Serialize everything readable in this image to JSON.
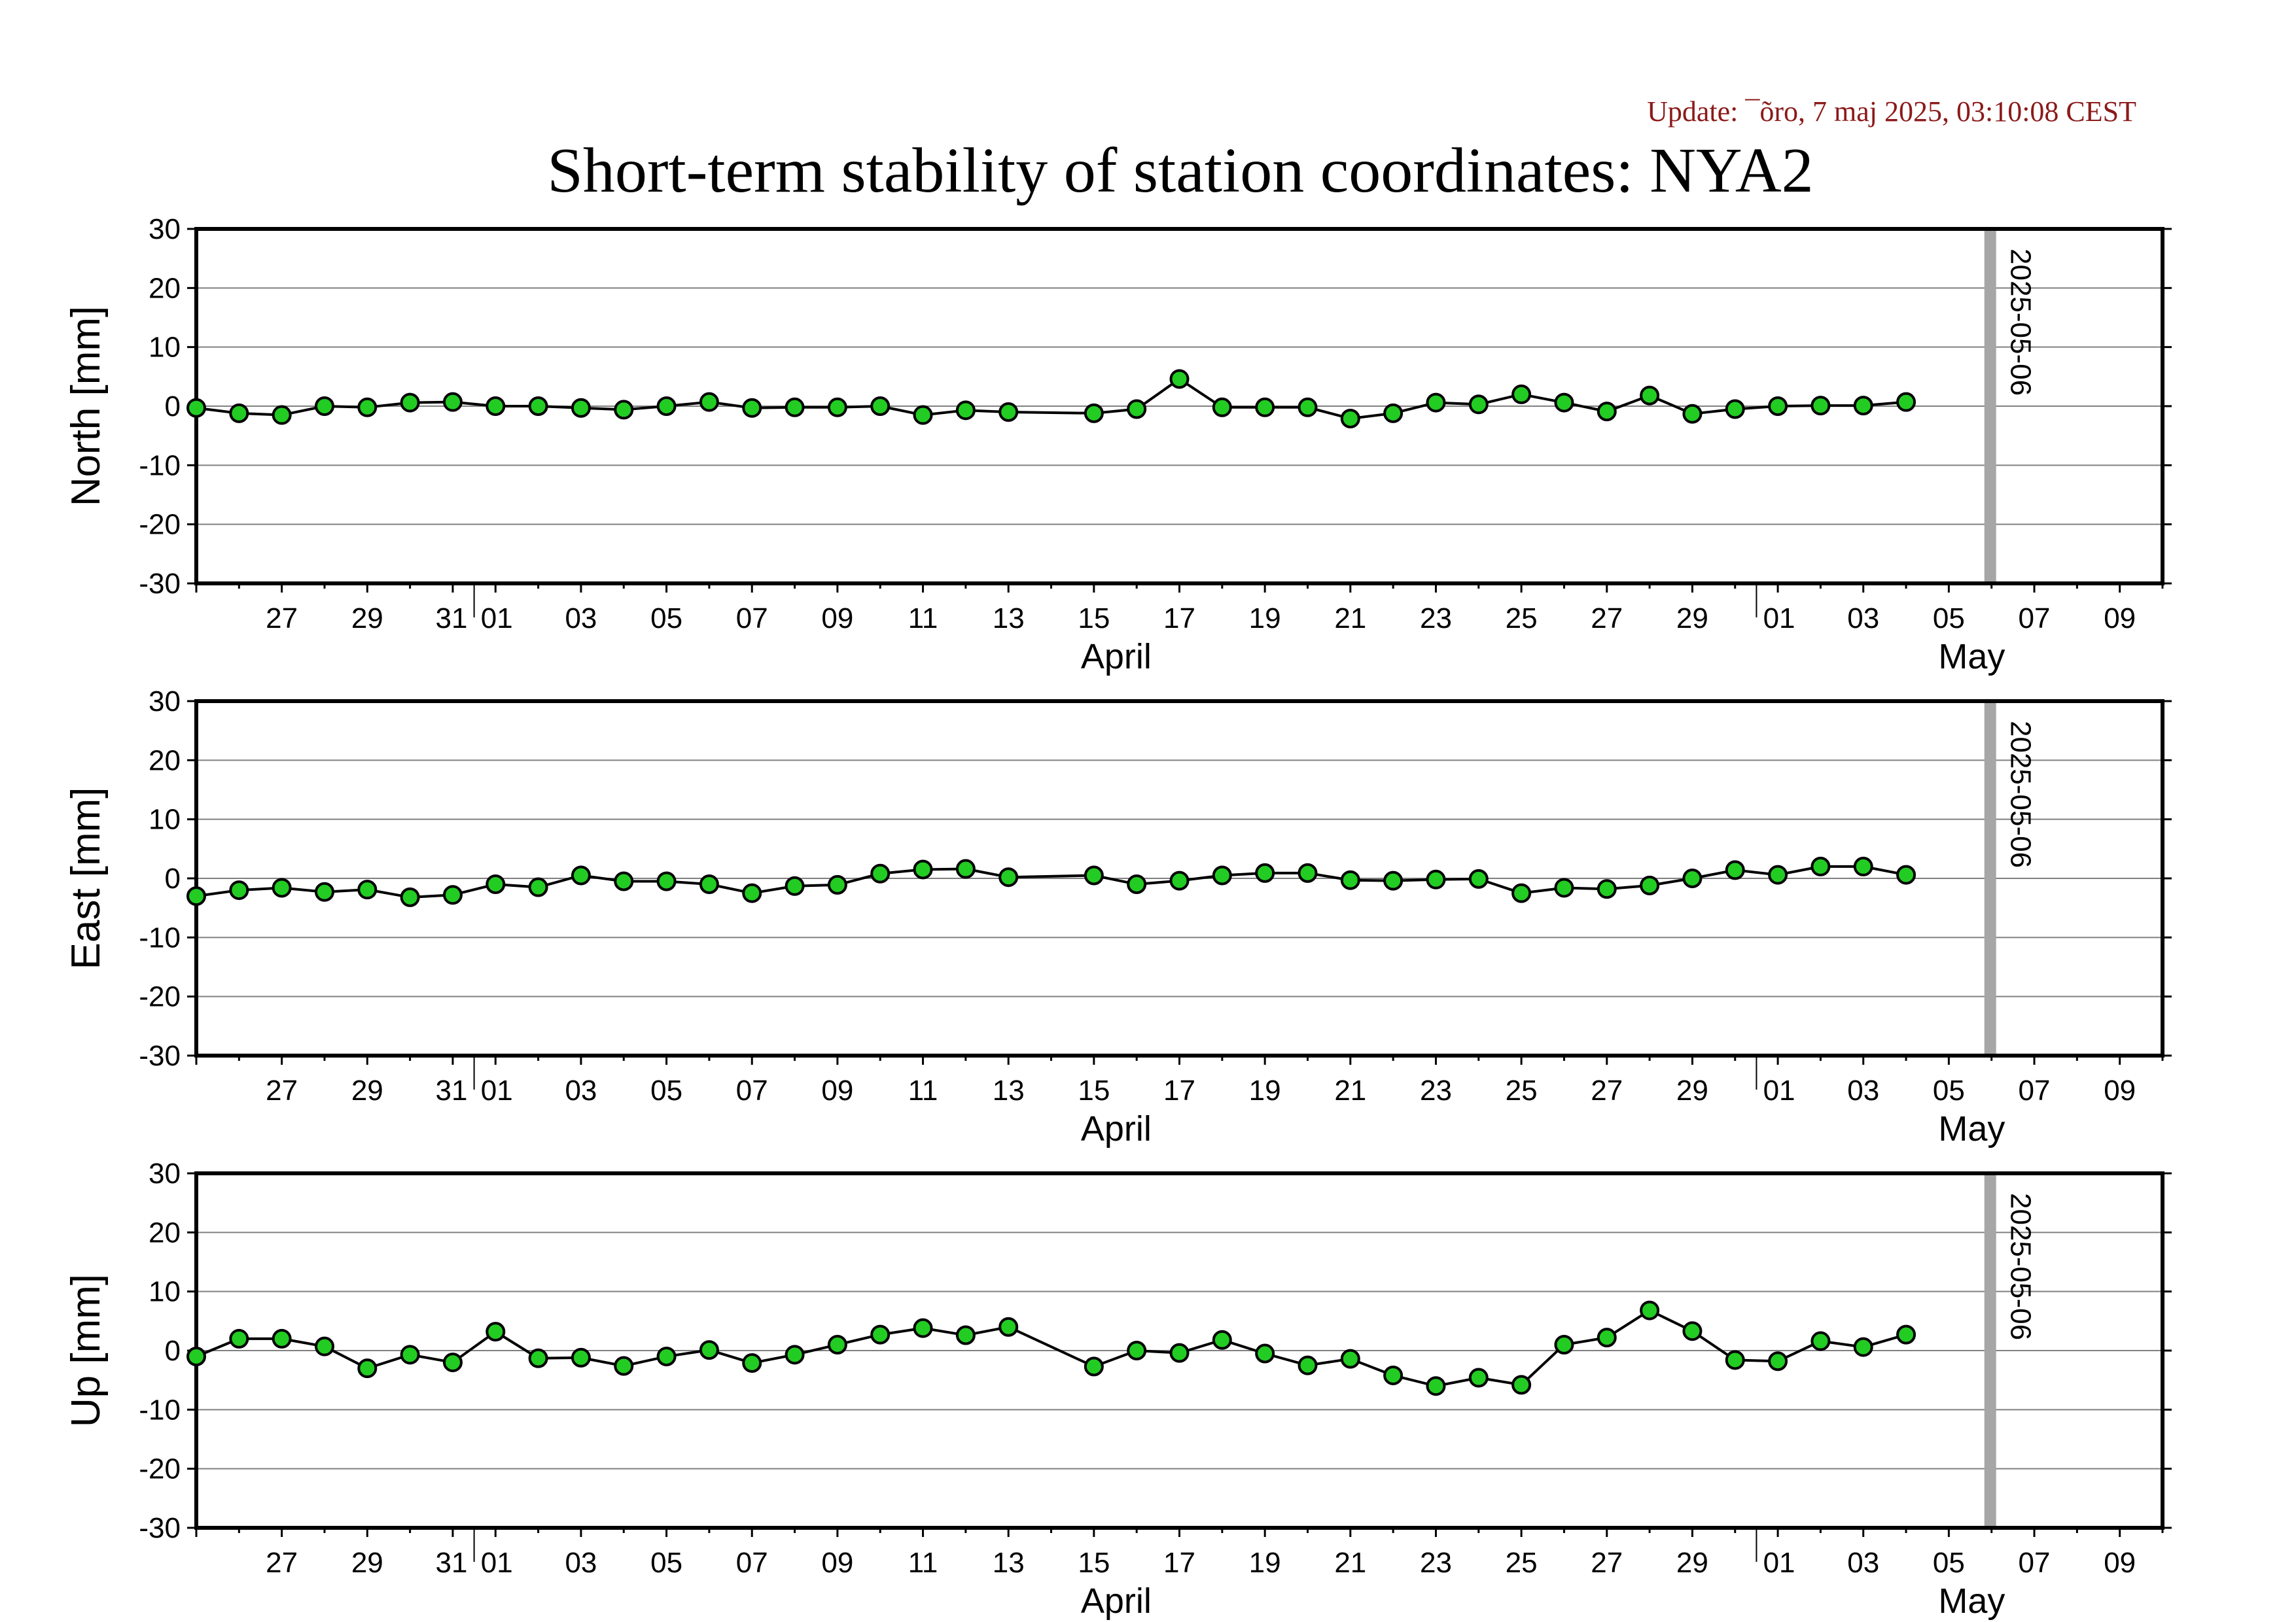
{
  "header": {
    "update": "Update: ¯õro, 7 maj 2025, 03:10:08 CEST",
    "title": "Short-term stability of station coordinates: NYA2"
  },
  "styles": {
    "point_fill": "#22cc22",
    "point_stroke": "#000000",
    "line_color": "#000000",
    "grid_color": "#808080",
    "marker_line_color": "#a6a6a6",
    "update_color": "#8b1a1a"
  },
  "chart_data": [
    {
      "type": "line",
      "ylabel": "North [mm]",
      "ylim": [
        -30,
        30
      ],
      "yticks": [
        30,
        20,
        10,
        0,
        -10,
        -20,
        -30
      ],
      "xlim": [
        "2025-03-25",
        "2025-05-10"
      ],
      "grid": true,
      "marker_line": {
        "date": "2025-05-06",
        "label": "2025-05-06"
      },
      "x_tick_labels": [
        "27",
        "29",
        "31",
        "01",
        "03",
        "05",
        "07",
        "09",
        "11",
        "13",
        "15",
        "17",
        "19",
        "21",
        "23",
        "25",
        "27",
        "29",
        "01",
        "03",
        "05",
        "07",
        "09"
      ],
      "month_labels": [
        "April",
        "May"
      ],
      "series": [
        {
          "x": [
            "2025-03-25",
            "2025-03-26",
            "2025-03-27",
            "2025-03-28",
            "2025-03-29",
            "2025-03-30",
            "2025-03-31",
            "2025-04-01",
            "2025-04-02",
            "2025-04-03",
            "2025-04-04",
            "2025-04-05",
            "2025-04-06",
            "2025-04-07",
            "2025-04-08",
            "2025-04-09",
            "2025-04-10",
            "2025-04-11",
            "2025-04-12",
            "2025-04-13",
            "2025-04-15",
            "2025-04-16",
            "2025-04-17",
            "2025-04-18",
            "2025-04-19",
            "2025-04-20",
            "2025-04-21",
            "2025-04-22",
            "2025-04-23",
            "2025-04-24",
            "2025-04-25",
            "2025-04-26",
            "2025-04-27",
            "2025-04-28",
            "2025-04-29",
            "2025-04-30",
            "2025-05-01",
            "2025-05-02",
            "2025-05-03",
            "2025-05-04"
          ],
          "values": [
            -0.3,
            -1.2,
            -1.5,
            0.0,
            -0.2,
            0.6,
            0.7,
            0.0,
            0.0,
            -0.3,
            -0.6,
            0.0,
            0.7,
            -0.3,
            -0.2,
            -0.2,
            0.0,
            -1.5,
            -0.7,
            -1.0,
            -1.2,
            -0.5,
            4.6,
            -0.2,
            -0.2,
            -0.2,
            -2.1,
            -1.2,
            0.6,
            0.3,
            2.0,
            0.6,
            -0.9,
            1.8,
            -1.3,
            -0.5,
            0.0,
            0.1,
            0.1,
            0.7
          ]
        }
      ]
    },
    {
      "type": "line",
      "ylabel": "East [mm]",
      "ylim": [
        -30,
        30
      ],
      "yticks": [
        30,
        20,
        10,
        0,
        -10,
        -20,
        -30
      ],
      "xlim": [
        "2025-03-25",
        "2025-05-10"
      ],
      "grid": true,
      "marker_line": {
        "date": "2025-05-06",
        "label": "2025-05-06"
      },
      "x_tick_labels": [
        "27",
        "29",
        "31",
        "01",
        "03",
        "05",
        "07",
        "09",
        "11",
        "13",
        "15",
        "17",
        "19",
        "21",
        "23",
        "25",
        "27",
        "29",
        "01",
        "03",
        "05",
        "07",
        "09"
      ],
      "month_labels": [
        "April",
        "May"
      ],
      "series": [
        {
          "x": [
            "2025-03-25",
            "2025-03-26",
            "2025-03-27",
            "2025-03-28",
            "2025-03-29",
            "2025-03-30",
            "2025-03-31",
            "2025-04-01",
            "2025-04-02",
            "2025-04-03",
            "2025-04-04",
            "2025-04-05",
            "2025-04-06",
            "2025-04-07",
            "2025-04-08",
            "2025-04-09",
            "2025-04-10",
            "2025-04-11",
            "2025-04-12",
            "2025-04-13",
            "2025-04-15",
            "2025-04-16",
            "2025-04-17",
            "2025-04-18",
            "2025-04-19",
            "2025-04-20",
            "2025-04-21",
            "2025-04-22",
            "2025-04-23",
            "2025-04-24",
            "2025-04-25",
            "2025-04-26",
            "2025-04-27",
            "2025-04-28",
            "2025-04-29",
            "2025-04-30",
            "2025-05-01",
            "2025-05-02",
            "2025-05-03",
            "2025-05-04"
          ],
          "values": [
            -3.0,
            -2.0,
            -1.6,
            -2.3,
            -1.9,
            -3.2,
            -2.8,
            -1.0,
            -1.5,
            0.5,
            -0.5,
            -0.5,
            -1.0,
            -2.5,
            -1.3,
            -1.1,
            0.8,
            1.5,
            1.6,
            0.2,
            0.5,
            -1.0,
            -0.4,
            0.5,
            0.9,
            0.9,
            -0.3,
            -0.4,
            -0.2,
            -0.1,
            -2.5,
            -1.6,
            -1.8,
            -1.2,
            0.0,
            1.4,
            0.6,
            2.0,
            2.0,
            0.6
          ]
        }
      ]
    },
    {
      "type": "line",
      "ylabel": "Up [mm]",
      "ylim": [
        -30,
        30
      ],
      "yticks": [
        30,
        20,
        10,
        0,
        -10,
        -20,
        -30
      ],
      "xlim": [
        "2025-03-25",
        "2025-05-10"
      ],
      "grid": true,
      "marker_line": {
        "date": "2025-05-06",
        "label": "2025-05-06"
      },
      "x_tick_labels": [
        "27",
        "29",
        "31",
        "01",
        "03",
        "05",
        "07",
        "09",
        "11",
        "13",
        "15",
        "17",
        "19",
        "21",
        "23",
        "25",
        "27",
        "29",
        "01",
        "03",
        "05",
        "07",
        "09"
      ],
      "month_labels": [
        "April",
        "May"
      ],
      "series": [
        {
          "x": [
            "2025-03-25",
            "2025-03-26",
            "2025-03-27",
            "2025-03-28",
            "2025-03-29",
            "2025-03-30",
            "2025-03-31",
            "2025-04-01",
            "2025-04-02",
            "2025-04-03",
            "2025-04-04",
            "2025-04-05",
            "2025-04-06",
            "2025-04-07",
            "2025-04-08",
            "2025-04-09",
            "2025-04-10",
            "2025-04-11",
            "2025-04-12",
            "2025-04-13",
            "2025-04-15",
            "2025-04-16",
            "2025-04-17",
            "2025-04-18",
            "2025-04-19",
            "2025-04-20",
            "2025-04-21",
            "2025-04-22",
            "2025-04-23",
            "2025-04-24",
            "2025-04-25",
            "2025-04-26",
            "2025-04-27",
            "2025-04-28",
            "2025-04-29",
            "2025-04-30",
            "2025-05-01",
            "2025-05-02",
            "2025-05-03",
            "2025-05-04"
          ],
          "values": [
            -1.0,
            2.0,
            2.0,
            0.7,
            -3.0,
            -0.7,
            -2.0,
            3.2,
            -1.3,
            -1.2,
            -2.6,
            -1.0,
            0.1,
            -2.1,
            -0.7,
            1.0,
            2.7,
            3.8,
            2.6,
            4.0,
            -2.7,
            0.0,
            -0.4,
            1.8,
            -0.5,
            -2.5,
            -1.4,
            -4.2,
            -6.0,
            -4.6,
            -5.8,
            1.0,
            2.2,
            6.8,
            3.3,
            -1.6,
            -1.8,
            1.6,
            0.6,
            2.7
          ]
        }
      ]
    }
  ]
}
